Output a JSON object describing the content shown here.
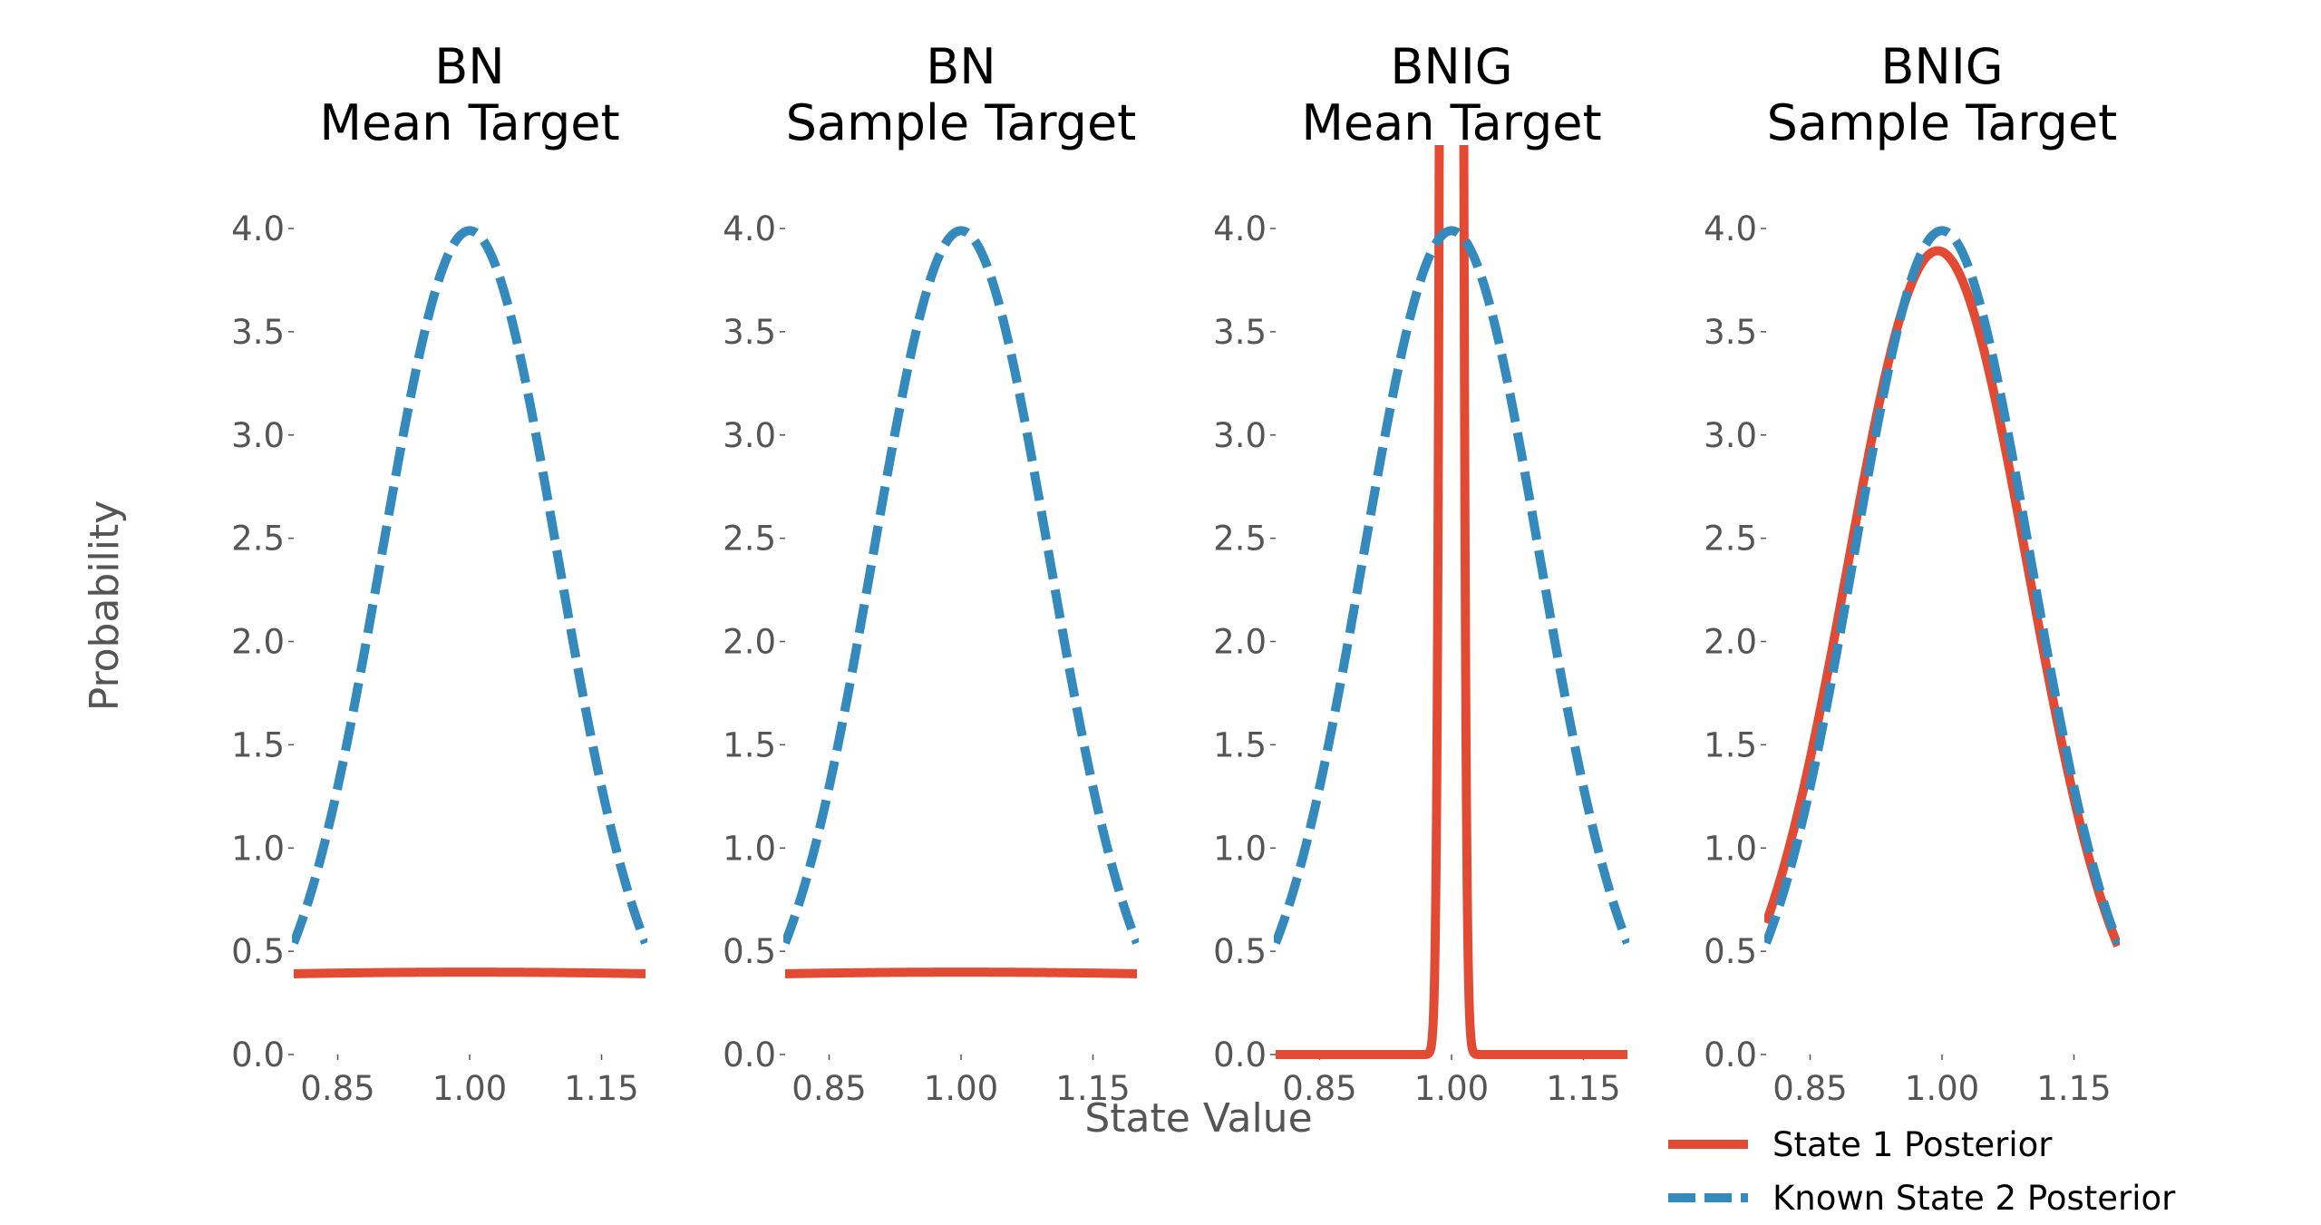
{
  "chart_data": {
    "type": "line",
    "ylabel": "Probability",
    "xlabel": "State Value",
    "ylim": [
      0,
      4.0
    ],
    "xlim": [
      0.8,
      1.2
    ],
    "yticks": [
      "0.0",
      "0.5",
      "1.0",
      "1.5",
      "2.0",
      "2.5",
      "3.0",
      "3.5",
      "4.0"
    ],
    "xticks": [
      "0.85",
      "1.00",
      "1.15"
    ],
    "grid": false,
    "legend": {
      "placement": "bottom-right",
      "entries": [
        {
          "name": "State 1 Posterior",
          "color": "#e24a33",
          "style": "solid"
        },
        {
          "name": "Known State 2 Posterior",
          "color": "#348abd",
          "style": "dashed"
        }
      ]
    },
    "colors": {
      "state1": "#e24a33",
      "state2": "#348abd"
    },
    "panels": [
      {
        "title_line1": "BN",
        "title_line2": "Mean Target",
        "series": [
          {
            "name": "State 1 Posterior",
            "dist": "normal",
            "mean": 1.0,
            "sd": 1.0
          },
          {
            "name": "Known State 2 Posterior",
            "dist": "normal",
            "mean": 1.0,
            "sd": 0.1
          }
        ]
      },
      {
        "title_line1": "BN",
        "title_line2": "Sample Target",
        "series": [
          {
            "name": "State 1 Posterior",
            "dist": "normal",
            "mean": 1.0,
            "sd": 1.0
          },
          {
            "name": "Known State 2 Posterior",
            "dist": "normal",
            "mean": 1.0,
            "sd": 0.1
          }
        ]
      },
      {
        "title_line1": "BNIG",
        "title_line2": "Mean Target",
        "series": [
          {
            "name": "State 1 Posterior",
            "dist": "normal",
            "mean": 1.0,
            "sd": 0.006
          },
          {
            "name": "Known State 2 Posterior",
            "dist": "normal",
            "mean": 1.0,
            "sd": 0.1
          }
        ]
      },
      {
        "title_line1": "BNIG",
        "title_line2": "Sample Target",
        "series": [
          {
            "name": "State 1 Posterior",
            "dist": "normal",
            "mean": 0.995,
            "sd": 0.1025
          },
          {
            "name": "Known State 2 Posterior",
            "dist": "normal",
            "mean": 1.0,
            "sd": 0.1
          }
        ]
      }
    ]
  }
}
